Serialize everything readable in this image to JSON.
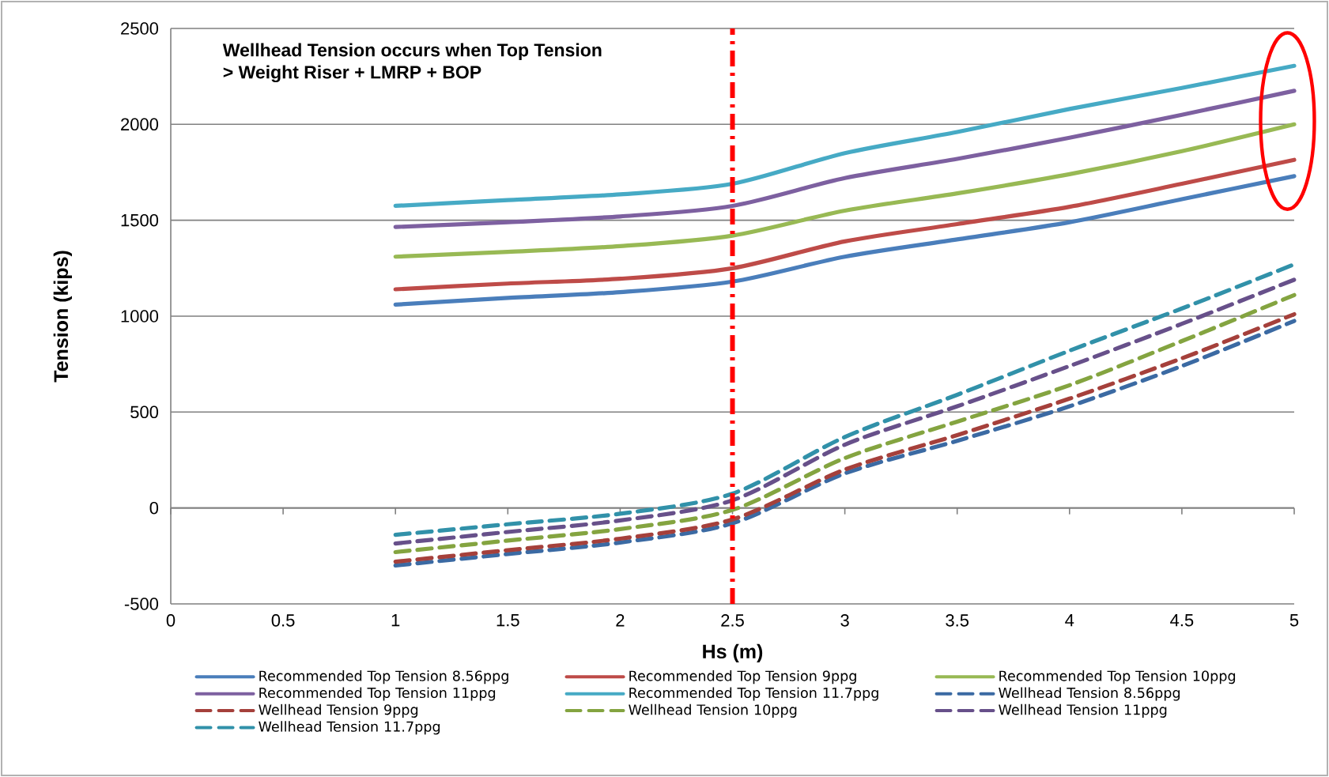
{
  "chart_data": {
    "type": "line",
    "xlabel": "Hs (m)",
    "ylabel": "Tension (kips)",
    "annotations": [
      "Wellhead Tension  occurs when Top Tension",
      "> Weight  Riser  + LMRP + BOP"
    ],
    "x": [
      1,
      1.5,
      2,
      2.5,
      3,
      3.5,
      4,
      4.5,
      5
    ],
    "xlim": [
      0,
      5
    ],
    "xticks": [
      0,
      0.5,
      1,
      1.5,
      2,
      2.5,
      3,
      3.5,
      4,
      4.5,
      5
    ],
    "ylim": [
      -500,
      2500
    ],
    "yticks": [
      -500,
      0,
      500,
      1000,
      1500,
      2000,
      2500
    ],
    "grid": "y",
    "legend": "bottom",
    "marker": "none",
    "ref_lines": [
      {
        "axis": "x",
        "value": 2.5,
        "color": "#ff0000",
        "line_style": "dashdot"
      }
    ],
    "series": [
      {
        "name": "Recommended Top Tension 8.56ppg",
        "color": "#4a7ebb",
        "line_style": "solid",
        "values": [
          1060,
          1095,
          1125,
          1180,
          1310,
          1400,
          1490,
          1610,
          1730
        ]
      },
      {
        "name": "Recommended Top Tension 9ppg",
        "color": "#be4b48",
        "line_style": "solid",
        "values": [
          1140,
          1170,
          1195,
          1250,
          1390,
          1480,
          1570,
          1690,
          1815
        ]
      },
      {
        "name": "Recommended Top Tension 10ppg",
        "color": "#98b954",
        "line_style": "solid",
        "values": [
          1310,
          1335,
          1365,
          1420,
          1550,
          1640,
          1740,
          1860,
          2000
        ]
      },
      {
        "name": "Recommended Top Tension 11ppg",
        "color": "#7d60a0",
        "line_style": "solid",
        "values": [
          1465,
          1490,
          1520,
          1575,
          1720,
          1820,
          1930,
          2050,
          2175
        ]
      },
      {
        "name": "Recommended Top Tension 11.7ppg",
        "color": "#46aac5",
        "line_style": "solid",
        "values": [
          1575,
          1605,
          1635,
          1690,
          1850,
          1960,
          2080,
          2190,
          2305
        ]
      },
      {
        "name": "Wellhead Tension 8.56ppg",
        "color": "#3b6aa3",
        "line_style": "dashed",
        "values": [
          -300,
          -240,
          -180,
          -80,
          180,
          350,
          530,
          740,
          975
        ]
      },
      {
        "name": "Wellhead Tension 9ppg",
        "color": "#a5403b",
        "line_style": "dashed",
        "values": [
          -280,
          -220,
          -160,
          -60,
          200,
          380,
          570,
          780,
          1010
        ]
      },
      {
        "name": "Wellhead Tension 10ppg",
        "color": "#84a440",
        "line_style": "dashed",
        "values": [
          -230,
          -170,
          -110,
          -10,
          260,
          450,
          640,
          870,
          1110
        ]
      },
      {
        "name": "Wellhead Tension 11ppg",
        "color": "#67508a",
        "line_style": "dashed",
        "values": [
          -185,
          -125,
          -65,
          40,
          330,
          530,
          740,
          960,
          1190
        ]
      },
      {
        "name": "Wellhead Tension 11.7ppg",
        "color": "#3191a9",
        "line_style": "dashed",
        "values": [
          -140,
          -85,
          -30,
          75,
          370,
          590,
          820,
          1040,
          1270
        ]
      }
    ]
  }
}
